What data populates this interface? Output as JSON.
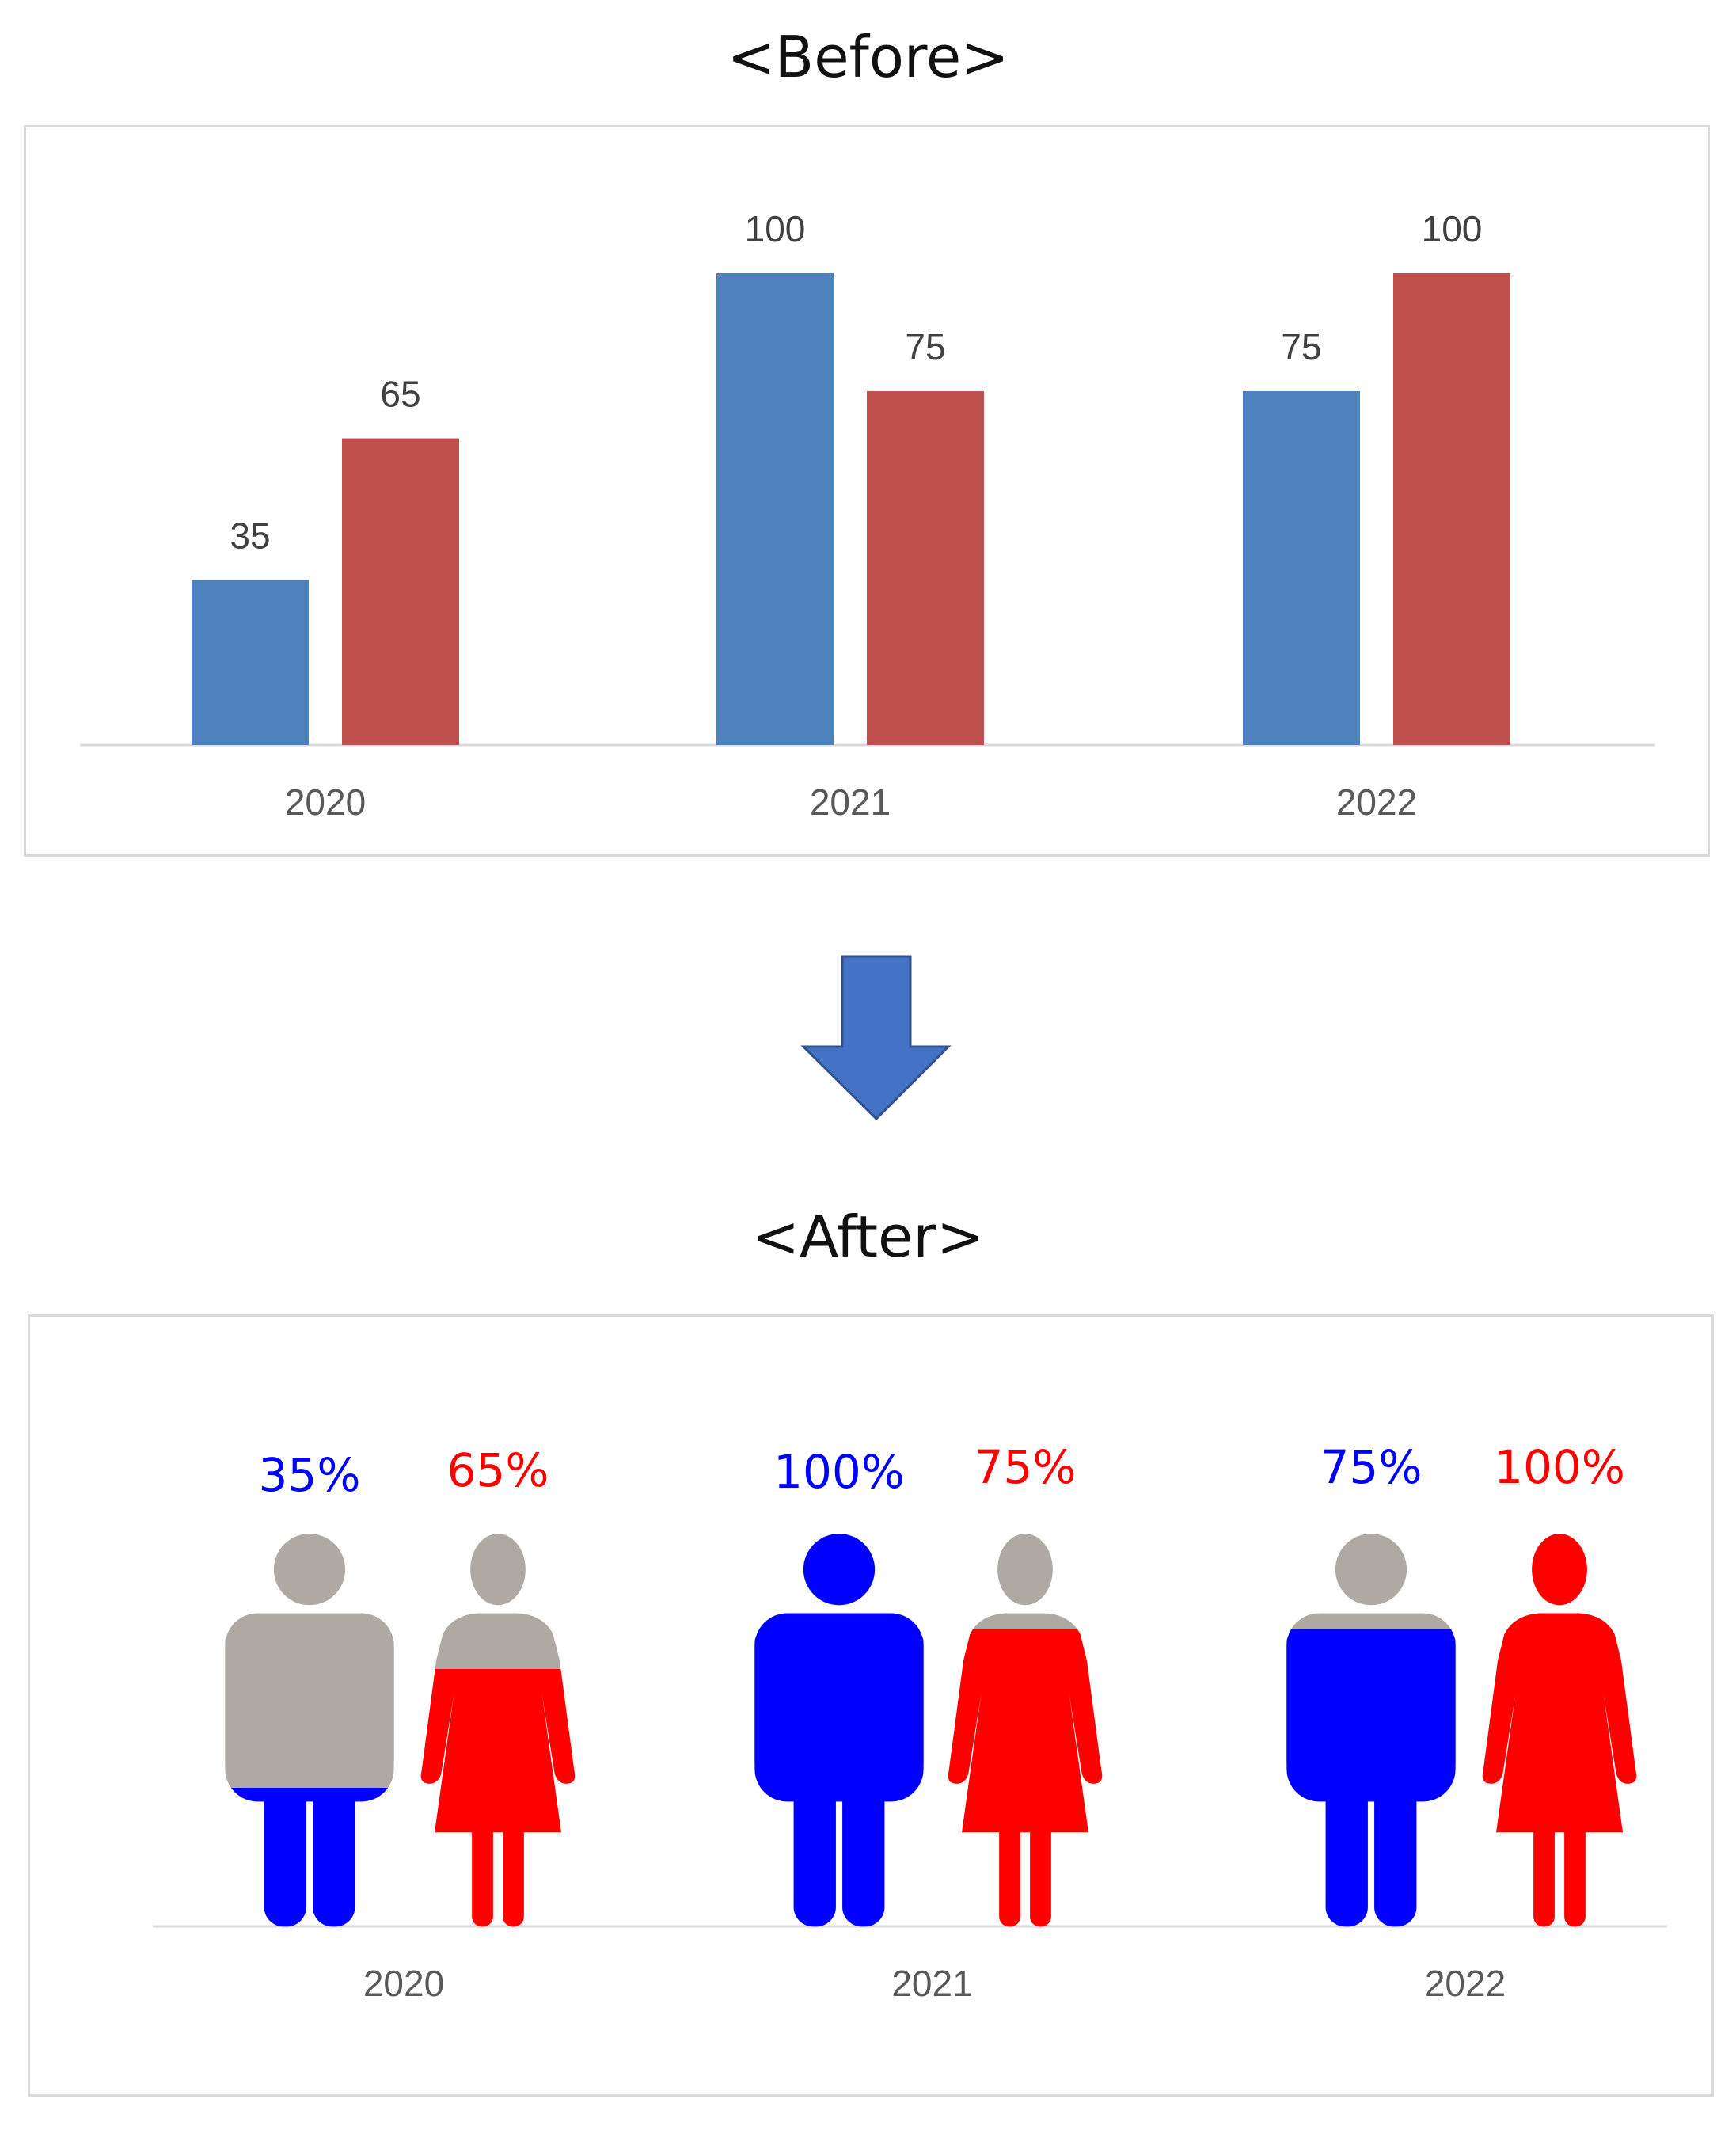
{
  "headings": {
    "before": "<Before>",
    "after": "<After>"
  },
  "colors": {
    "before_series_1": "#4f81bd",
    "before_series_2": "#c0504d",
    "after_series_1": "#0000ff",
    "after_series_2": "#ff0000",
    "unfilled": "#aeaaa3",
    "arrow": "#4472c4"
  },
  "icons": {
    "series_1": "man-icon",
    "series_2": "woman-icon",
    "transition": "down-arrow-icon"
  },
  "chart_data": [
    {
      "type": "bar",
      "title": "",
      "categories": [
        "2020",
        "2021",
        "2022"
      ],
      "series": [
        {
          "values": [
            35,
            100,
            75
          ]
        },
        {
          "values": [
            65,
            75,
            100
          ]
        }
      ],
      "labels": [
        [
          "35",
          "100",
          "75"
        ],
        [
          "65",
          "75",
          "100"
        ]
      ],
      "ylim": [
        0,
        100
      ],
      "grid": false,
      "legend": "none"
    },
    {
      "type": "pictogram",
      "title": "",
      "categories": [
        "2020",
        "2021",
        "2022"
      ],
      "series": [
        {
          "icon": "man-icon",
          "values": [
            35,
            100,
            75
          ]
        },
        {
          "icon": "woman-icon",
          "values": [
            65,
            75,
            100
          ]
        }
      ],
      "labels": [
        [
          "35%",
          "100%",
          "75%"
        ],
        [
          "65%",
          "75%",
          "100%"
        ]
      ],
      "ylim": [
        0,
        100
      ],
      "grid": false,
      "legend": "none"
    }
  ]
}
